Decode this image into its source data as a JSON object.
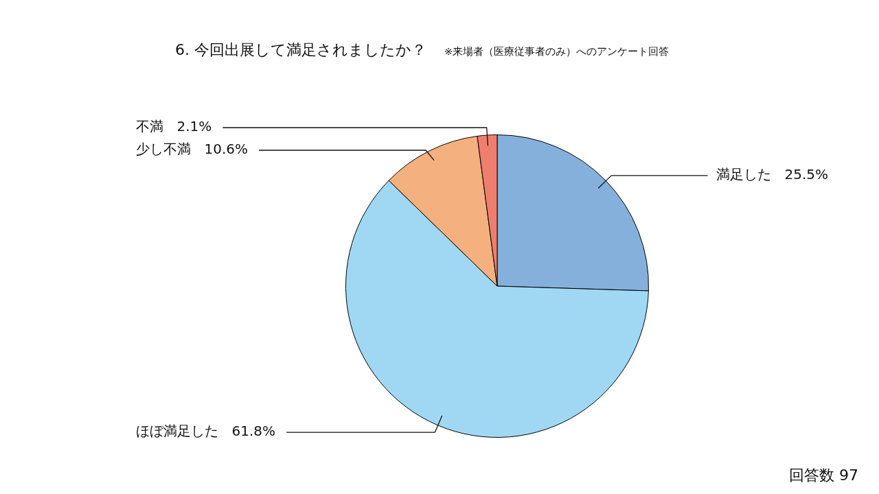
{
  "chart_data": {
    "type": "pie",
    "title": "6. 今回出展して満足されましたか？",
    "subtitle": "※来場者（医療従事者のみ）へのアンケート回答",
    "categories": [
      "満足した",
      "ほぼ満足した",
      "少し不満",
      "不満"
    ],
    "values": [
      25.5,
      61.8,
      10.6,
      2.1
    ],
    "colors": [
      "#85b0dc",
      "#a0d8f4",
      "#f4b07e",
      "#ee7e6e"
    ],
    "value_labels": [
      "25.5%",
      "61.8%",
      "10.6%",
      "2.1%"
    ],
    "annotations": [
      "回答数 97"
    ],
    "legend": false
  }
}
